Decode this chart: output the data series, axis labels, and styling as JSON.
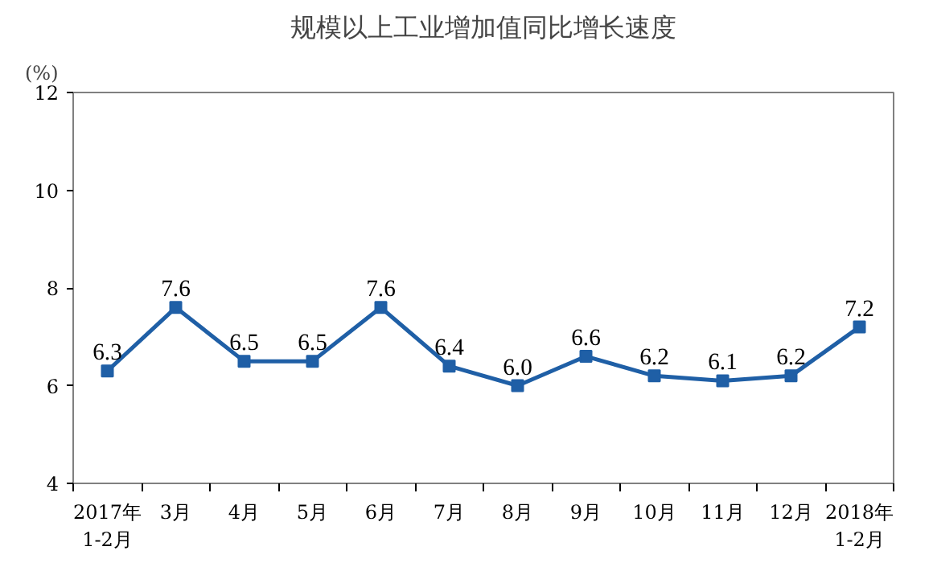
{
  "chart_data": {
    "type": "line",
    "title": "规模以上工业增加值同比增长速度",
    "ylabel": "(%)",
    "categories": [
      "2017年\n1-2月",
      "3月",
      "4月",
      "5月",
      "6月",
      "7月",
      "8月",
      "9月",
      "10月",
      "11月",
      "12月",
      "2018年\n1-2月"
    ],
    "series": [
      {
        "color": "#1f5fa6",
        "values": [
          6.3,
          7.6,
          6.5,
          6.5,
          7.6,
          6.4,
          6.0,
          6.6,
          6.2,
          6.1,
          6.2,
          7.2
        ],
        "value_labels": [
          "6.3",
          "7.6",
          "6.5",
          "6.5",
          "7.6",
          "6.4",
          "6.0",
          "6.6",
          "6.2",
          "6.1",
          "6.2",
          "7.2"
        ]
      }
    ],
    "ylim": [
      4,
      12
    ],
    "yticks": [
      4,
      6,
      8,
      10,
      12
    ],
    "grid": false,
    "marker": "square",
    "line_style": "solid"
  }
}
